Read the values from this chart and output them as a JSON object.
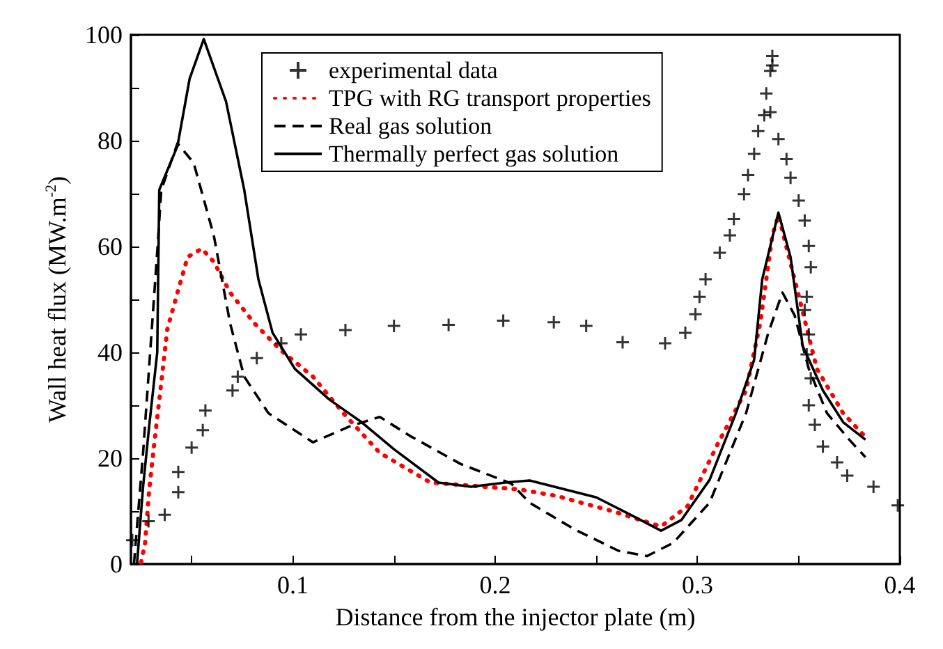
{
  "chart_data": {
    "type": "line",
    "xlabel": "Distance from the injector plate (m)",
    "ylabel": "Wall heat flux (MW.m$^{-2}$)",
    "xlim": [
      0.02,
      0.4
    ],
    "ylim": [
      0,
      100
    ],
    "xticks": [
      {
        "value": 0.05,
        "label": null
      },
      0.1,
      {
        "value": 0.15,
        "label": null
      },
      0.2,
      {
        "value": 0.25,
        "label": null
      },
      0.3,
      {
        "value": 0.35,
        "label": null
      },
      0.4
    ],
    "yticks": [
      0,
      {
        "value": 10,
        "label": null
      },
      20,
      {
        "value": 30,
        "label": null
      },
      40,
      {
        "value": 50,
        "label": null
      },
      60,
      {
        "value": 70,
        "label": null
      },
      80,
      {
        "value": 90,
        "label": null
      },
      100
    ],
    "grid": false,
    "legend": "top",
    "series": [
      {
        "name": "experimental data",
        "type": "scatter",
        "marker": "cross",
        "color": "#000000",
        "x": [
          0.0207,
          0.0287,
          0.0367,
          0.0434,
          0.0434,
          0.05,
          0.0555,
          0.0568,
          0.0702,
          0.0728,
          0.0822,
          0.0943,
          0.104,
          0.126,
          0.15,
          0.177,
          0.204,
          0.229,
          0.245,
          0.263,
          0.284,
          0.294,
          0.299,
          0.301,
          0.304,
          0.311,
          0.316,
          0.318,
          0.323,
          0.325,
          0.328,
          0.33,
          0.333,
          0.334,
          0.336,
          0.337,
          0.337,
          0.336,
          0.34,
          0.344,
          0.346,
          0.35,
          0.353,
          0.355,
          0.356,
          0.354,
          0.353,
          0.355,
          0.354,
          0.356,
          0.355,
          0.358,
          0.362,
          0.369,
          0.374,
          0.387,
          0.399
        ],
        "values": [
          4.5,
          8.1,
          9.3,
          13.6,
          17.4,
          22.0,
          25.3,
          29.0,
          32.8,
          35.4,
          38.9,
          41.7,
          43.4,
          44.2,
          45.0,
          45.2,
          46.0,
          45.7,
          45.0,
          41.9,
          41.7,
          43.7,
          47.2,
          50.5,
          53.8,
          58.8,
          62.1,
          65.2,
          69.9,
          73.5,
          77.5,
          81.8,
          84.8,
          88.9,
          93.2,
          96.0,
          94.2,
          85.4,
          80.3,
          76.5,
          73.0,
          68.7,
          64.9,
          60.1,
          56.1,
          50.5,
          48.0,
          43.4,
          39.6,
          35.1,
          30.0,
          26.3,
          22.2,
          19.2,
          16.7,
          14.6,
          11.1
        ]
      },
      {
        "name": "TPG with RG transport properties",
        "type": "line",
        "marker": "none",
        "line_style": "dotted",
        "color": "#ff0000",
        "x": [
          0.025,
          0.027,
          0.029,
          0.031,
          0.035,
          0.038,
          0.043,
          0.048,
          0.055,
          0.061,
          0.069,
          0.081,
          0.094,
          0.11,
          0.125,
          0.143,
          0.168,
          0.195,
          0.212,
          0.23,
          0.257,
          0.282,
          0.295,
          0.31,
          0.324,
          0.331,
          0.337,
          0.34,
          0.348,
          0.359,
          0.372,
          0.383
        ],
        "values": [
          0.3,
          4,
          13.9,
          21,
          34.3,
          44.4,
          51.3,
          58,
          59.6,
          57.1,
          51.3,
          45.5,
          40.4,
          35.4,
          28.5,
          21,
          15.4,
          14.6,
          14.1,
          12.9,
          10.1,
          7.1,
          10.9,
          22.7,
          32.8,
          45.5,
          62.1,
          65.9,
          53.8,
          36.9,
          28.5,
          24
        ]
      },
      {
        "name": "Real gas solution",
        "type": "line",
        "marker": "none",
        "line_style": "dashed",
        "color": "#000000",
        "x": [
          0.0215,
          0.026,
          0.033,
          0.035,
          0.043,
          0.051,
          0.061,
          0.069,
          0.076,
          0.088,
          0.11,
          0.128,
          0.143,
          0.158,
          0.183,
          0.208,
          0.217,
          0.239,
          0.261,
          0.275,
          0.288,
          0.306,
          0.324,
          0.335,
          0.342,
          0.348,
          0.355,
          0.364,
          0.375,
          0.383
        ],
        "values": [
          0,
          21,
          59,
          70.7,
          79.5,
          75.8,
          62,
          45.5,
          35.4,
          28.5,
          23,
          26,
          27.8,
          24.2,
          18.9,
          15.2,
          11.6,
          6.6,
          2.5,
          1.5,
          4,
          11.6,
          28.5,
          43.7,
          51.3,
          47,
          36.9,
          28.5,
          23.5,
          20.2
        ]
      },
      {
        "name": "Thermally perfect gas solution",
        "type": "line",
        "marker": "none",
        "line_style": "solid",
        "color": "#000000",
        "x": [
          0.023,
          0.026,
          0.029,
          0.033,
          0.034,
          0.043,
          0.049,
          0.056,
          0.067,
          0.076,
          0.083,
          0.09,
          0.101,
          0.118,
          0.134,
          0.15,
          0.172,
          0.188,
          0.205,
          0.217,
          0.25,
          0.268,
          0.282,
          0.292,
          0.306,
          0.319,
          0.328,
          0.332,
          0.34,
          0.346,
          0.352,
          0.362,
          0.372,
          0.383
        ],
        "values": [
          0,
          14.6,
          26,
          40,
          70.7,
          79,
          91.7,
          99.2,
          87.4,
          70.7,
          53.8,
          43.7,
          36.9,
          31.1,
          26.8,
          21.7,
          15.4,
          14.6,
          15.4,
          15.8,
          12.6,
          9.1,
          6.3,
          8.3,
          15.9,
          28.5,
          38.6,
          53.8,
          66.4,
          58,
          41.2,
          32.8,
          26.8,
          23.5
        ]
      }
    ]
  }
}
